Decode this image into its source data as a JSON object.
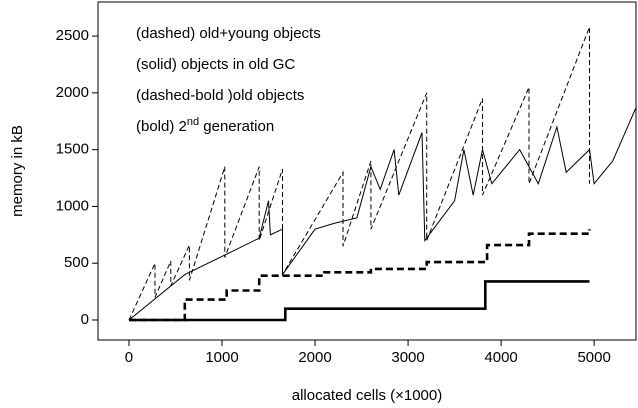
{
  "chart_data": {
    "type": "line",
    "xlabel": "allocated cells (×1000)",
    "ylabel": "memory in kB",
    "xlim": [
      -333,
      5450
    ],
    "ylim": [
      -176,
      2800
    ],
    "xticks": [
      0,
      1000,
      2000,
      3000,
      4000,
      5000
    ],
    "yticks": [
      0,
      500,
      1000,
      1500,
      2000,
      2500
    ],
    "series": [
      {
        "name": "(dashed) old+young objects",
        "color": "#000000",
        "dash": true,
        "bold": false,
        "x": [
          0,
          280,
          280,
          450,
          450,
          650,
          650,
          1030,
          1030,
          1400,
          1400,
          1650,
          1650,
          2300,
          2300,
          2600,
          2600,
          3200,
          3200,
          3800,
          3800,
          4300,
          4300,
          4950,
          4950
        ],
        "values": [
          0,
          500,
          200,
          520,
          300,
          660,
          350,
          1350,
          550,
          1350,
          700,
          1330,
          400,
          1300,
          650,
          1400,
          800,
          2000,
          700,
          1950,
          1100,
          2050,
          1200,
          2580,
          1200
        ]
      },
      {
        "name": "(solid) objects in old GC",
        "color": "#000000",
        "dash": false,
        "bold": false,
        "x": [
          0,
          600,
          1400,
          1500,
          1520,
          1650,
          1650,
          2000,
          2200,
          2450,
          2600,
          2700,
          2850,
          2900,
          3150,
          3180,
          3500,
          3600,
          3700,
          3800,
          3900,
          4200,
          4400,
          4600,
          4700,
          4950,
          5000,
          5200,
          5450
        ],
        "values": [
          0,
          400,
          720,
          1050,
          750,
          800,
          400,
          800,
          850,
          900,
          1350,
          1150,
          1500,
          1100,
          1650,
          700,
          1050,
          1500,
          1100,
          1500,
          1200,
          1500,
          1200,
          1700,
          1300,
          1500,
          1200,
          1400,
          1870
        ]
      },
      {
        "name": "(dashed-bold )old objects",
        "color": "#000000",
        "dash": true,
        "bold": true,
        "x": [
          0,
          600,
          600,
          1050,
          1050,
          1400,
          1400,
          2100,
          2100,
          2600,
          2600,
          3200,
          3200,
          3850,
          3850,
          4300,
          4300,
          4950,
          4950
        ],
        "values": [
          0,
          0,
          180,
          180,
          260,
          260,
          390,
          390,
          420,
          420,
          450,
          450,
          510,
          510,
          660,
          660,
          760,
          760,
          800
        ]
      },
      {
        "name": "(bold) 2nd generation",
        "color": "#000000",
        "dash": false,
        "bold": true,
        "x": [
          0,
          1680,
          1680,
          3830,
          3830,
          4950
        ],
        "values": [
          0,
          0,
          100,
          100,
          340,
          340
        ]
      }
    ]
  }
}
